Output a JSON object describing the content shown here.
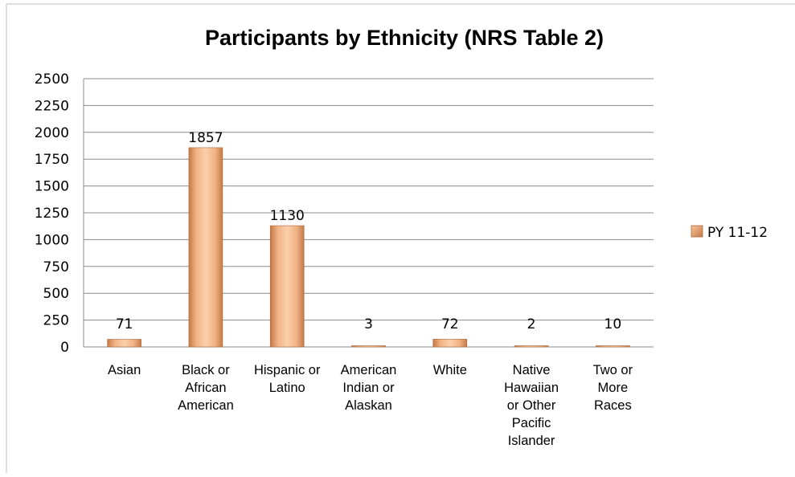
{
  "chart_data": {
    "type": "bar",
    "title": "Participants by Ethnicity (NRS Table 2)",
    "xlabel": "",
    "ylabel": "",
    "categories": [
      [
        "Asian"
      ],
      [
        "Black or",
        "African",
        "American"
      ],
      [
        "Hispanic or",
        "Latino"
      ],
      [
        "American",
        "Indian or",
        "Alaskan"
      ],
      [
        "White"
      ],
      [
        "Native",
        "Hawaiian",
        "or Other",
        "Pacific",
        "Islander"
      ],
      [
        "Two or",
        "More",
        "Races"
      ]
    ],
    "series": [
      {
        "name": "PY 11-12",
        "values": [
          71,
          1857,
          1130,
          3,
          72,
          2,
          10
        ]
      }
    ],
    "ylim": [
      0,
      2500
    ],
    "yticks": [
      0,
      250,
      500,
      750,
      1000,
      1250,
      1500,
      1750,
      2000,
      2250,
      2500
    ],
    "grid": true,
    "legend": "right",
    "colors": {
      "bar_light": "#f8c49a",
      "bar_mid": "#e8a070",
      "bar_dark": "#c07040",
      "grid": "#8c8c8c",
      "border": "#bfbfbf"
    }
  }
}
